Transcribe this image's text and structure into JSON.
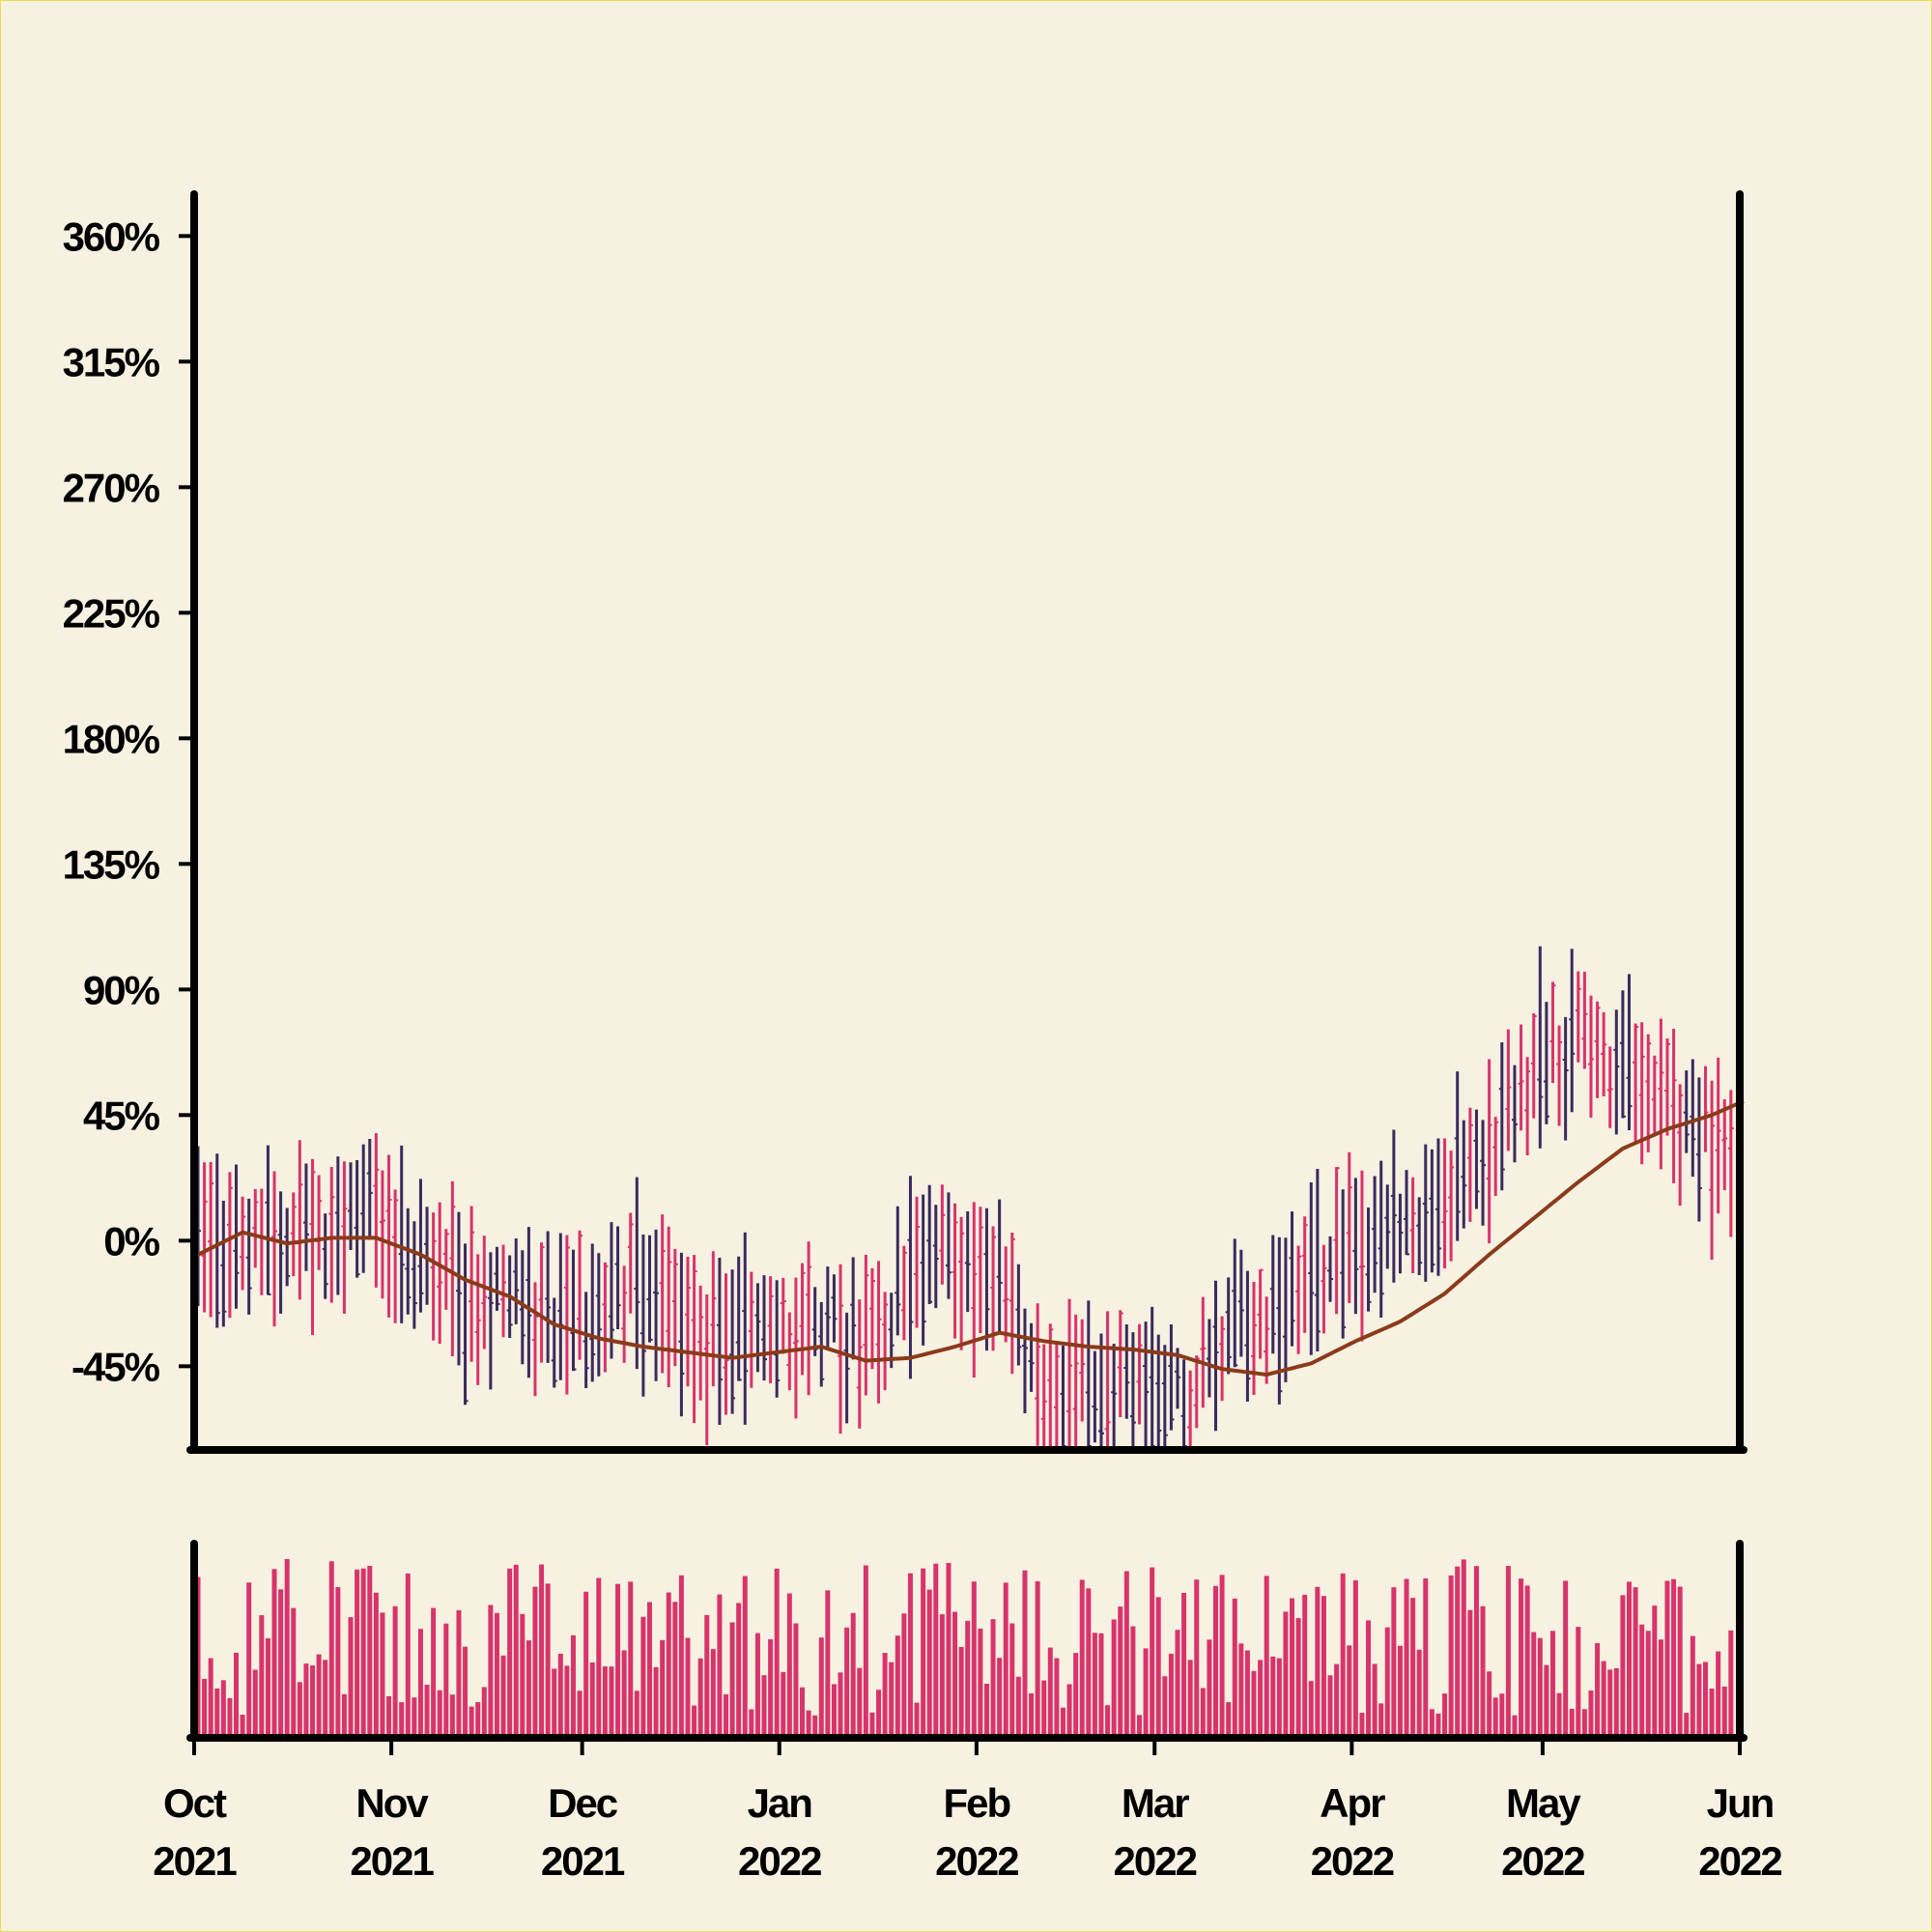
{
  "chart_data": {
    "type": "ohlc",
    "title": "",
    "xlabel": "",
    "ylabel": "",
    "ylim": [
      -75,
      375
    ],
    "y_ticks": [
      -45,
      0,
      45,
      90,
      135,
      180,
      225,
      270,
      315,
      360
    ],
    "y_tick_labels": [
      "-45%",
      "0%",
      "45%",
      "90%",
      "135%",
      "180%",
      "225%",
      "270%",
      "315%",
      "360%"
    ],
    "y_unit": "%",
    "x_range": [
      "2021-10-01",
      "2022-06-01"
    ],
    "x_ticks": [
      {
        "date": "2021-10-01",
        "month": "Oct",
        "year": "2021"
      },
      {
        "date": "2021-11-01",
        "month": "Nov",
        "year": "2021"
      },
      {
        "date": "2021-12-01",
        "month": "Dec",
        "year": "2021"
      },
      {
        "date": "2022-01-01",
        "month": "Jan",
        "year": "2022"
      },
      {
        "date": "2022-02-01",
        "month": "Feb",
        "year": "2022"
      },
      {
        "date": "2022-03-01",
        "month": "Mar",
        "year": "2022"
      },
      {
        "date": "2022-04-01",
        "month": "Apr",
        "year": "2022"
      },
      {
        "date": "2022-05-01",
        "month": "May",
        "year": "2022"
      },
      {
        "date": "2022-06-01",
        "month": "Jun",
        "year": "2022"
      }
    ],
    "close_trend": [
      [
        "2021-10-01",
        0
      ],
      [
        "2021-10-08",
        2
      ],
      [
        "2021-10-15",
        1
      ],
      [
        "2021-10-22",
        6
      ],
      [
        "2021-10-29",
        8
      ],
      [
        "2021-11-05",
        -10
      ],
      [
        "2021-11-12",
        -22
      ],
      [
        "2021-11-19",
        -15
      ],
      [
        "2021-11-26",
        -35
      ],
      [
        "2021-12-03",
        -20
      ],
      [
        "2021-12-10",
        -18
      ],
      [
        "2021-12-17",
        -32
      ],
      [
        "2021-12-24",
        -40
      ],
      [
        "2021-12-31",
        -30
      ],
      [
        "2022-01-07",
        -28
      ],
      [
        "2022-01-14",
        -40
      ],
      [
        "2022-01-21",
        -10
      ],
      [
        "2022-01-28",
        -5
      ],
      [
        "2022-02-04",
        -18
      ],
      [
        "2022-02-11",
        -52
      ],
      [
        "2022-02-18",
        -58
      ],
      [
        "2022-02-25",
        -48
      ],
      [
        "2022-03-04",
        -55
      ],
      [
        "2022-03-11",
        -35
      ],
      [
        "2022-03-18",
        -25
      ],
      [
        "2022-03-25",
        -15
      ],
      [
        "2022-04-01",
        -5
      ],
      [
        "2022-04-08",
        5
      ],
      [
        "2022-04-15",
        15
      ],
      [
        "2022-04-22",
        35
      ],
      [
        "2022-04-29",
        60
      ],
      [
        "2022-05-06",
        72
      ],
      [
        "2022-05-13",
        60
      ],
      [
        "2022-05-20",
        48
      ],
      [
        "2022-05-27",
        38
      ],
      [
        "2022-06-01",
        28
      ]
    ],
    "moving_average": [
      [
        "2021-10-01",
        -5
      ],
      [
        "2021-10-08",
        3
      ],
      [
        "2021-10-15",
        -1
      ],
      [
        "2021-10-22",
        1
      ],
      [
        "2021-10-29",
        1
      ],
      [
        "2021-11-05",
        -5
      ],
      [
        "2021-11-12",
        -14
      ],
      [
        "2021-11-19",
        -20
      ],
      [
        "2021-11-26",
        -30
      ],
      [
        "2021-12-03",
        -35
      ],
      [
        "2021-12-10",
        -38
      ],
      [
        "2021-12-17",
        -40
      ],
      [
        "2021-12-24",
        -42
      ],
      [
        "2021-12-31",
        -40
      ],
      [
        "2022-01-07",
        -38
      ],
      [
        "2022-01-14",
        -43
      ],
      [
        "2022-01-21",
        -42
      ],
      [
        "2022-01-28",
        -38
      ],
      [
        "2022-02-04",
        -33
      ],
      [
        "2022-02-11",
        -36
      ],
      [
        "2022-02-18",
        -38
      ],
      [
        "2022-02-25",
        -39
      ],
      [
        "2022-03-04",
        -41
      ],
      [
        "2022-03-11",
        -46
      ],
      [
        "2022-03-18",
        -48
      ],
      [
        "2022-03-25",
        -44
      ],
      [
        "2022-04-01",
        -36
      ],
      [
        "2022-04-08",
        -29
      ],
      [
        "2022-04-15",
        -19
      ],
      [
        "2022-04-22",
        -5
      ],
      [
        "2022-04-29",
        8
      ],
      [
        "2022-05-06",
        21
      ],
      [
        "2022-05-13",
        33
      ],
      [
        "2022-05-20",
        40
      ],
      [
        "2022-05-27",
        45
      ],
      [
        "2022-06-01",
        50
      ]
    ],
    "volume": {
      "max": 100
    },
    "colors": {
      "up": "#d9336b",
      "down": "#3b2a5e",
      "volume": "#d9336b",
      "moving_average": "#8b3a1a",
      "background": "#f6f1e1",
      "axis": "#000000"
    },
    "legend": "none",
    "grid": false
  }
}
